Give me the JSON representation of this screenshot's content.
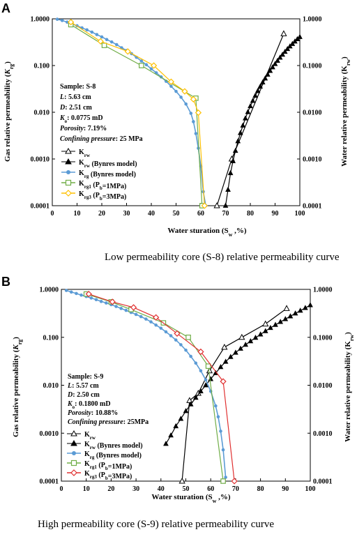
{
  "chart_data": [
    {
      "panel": "A",
      "type": "line",
      "caption": "Low permeability core (S-8) relative permeability curve",
      "xlabel": "Water sturation (S_w ,%)",
      "ylabel_left": "Gas relative permeability (K_rg)",
      "ylabel_right": "Water relative permeability (K_rw)",
      "xlim": [
        0,
        100
      ],
      "ylim": [
        0.0001,
        1
      ],
      "yscale": "log",
      "x_ticks": [
        "0",
        "10",
        "20",
        "30",
        "40",
        "50",
        "60",
        "70",
        "80",
        "90",
        "100"
      ],
      "y_ticks_left": [
        "0.0001",
        "0.0010",
        "0.010",
        "0.100",
        "1.0000"
      ],
      "y_ticks_right": [
        "0.0001",
        "0.0010",
        "0.0100",
        "0.1000",
        "1.0000"
      ],
      "info": [
        {
          "key": "Sample",
          "value": "S-8"
        },
        {
          "key": "L",
          "value": "5.63 cm"
        },
        {
          "key": "D",
          "value": "2.51 cm"
        },
        {
          "key": "K_o",
          "value": "0.0775 mD"
        },
        {
          "key": "Porosity",
          "value": "7.19%"
        },
        {
          "key": "Confining pressure",
          "value": "25 MPa"
        }
      ],
      "legend_position": "center-left",
      "series": [
        {
          "name": "K_rw",
          "color": "#000000",
          "marker": "open-triangle",
          "x": [
            66.5,
            72.5,
            93.5
          ],
          "y": [
            0.0001,
            0.001,
            0.48
          ]
        },
        {
          "name": "K_rw (Bynres model)",
          "color": "#000000",
          "marker": "filled-triangle",
          "x": [
            70,
            71,
            72,
            73,
            74,
            75,
            76,
            77,
            78,
            79,
            80,
            81,
            82,
            83,
            84,
            85,
            86,
            87,
            88,
            89,
            90,
            91,
            92,
            93,
            94,
            95,
            96,
            97,
            98,
            99,
            100
          ],
          "y": [
            0.0001,
            0.00022,
            0.0005,
            0.0009,
            0.0015,
            0.0024,
            0.0036,
            0.0052,
            0.0074,
            0.0101,
            0.0135,
            0.0176,
            0.0226,
            0.0285,
            0.0355,
            0.0436,
            0.053,
            0.064,
            0.077,
            0.092,
            0.108,
            0.127,
            0.148,
            0.171,
            0.197,
            0.226,
            0.257,
            0.291,
            0.328,
            0.368,
            0.41
          ]
        },
        {
          "name": "K_rg (Bynres model)",
          "color": "#5b9bd5",
          "marker": "filled-circle",
          "x": [
            2,
            4,
            6,
            8,
            10,
            12,
            14,
            16,
            18,
            20,
            22,
            24,
            26,
            28,
            30,
            32,
            34,
            36,
            38,
            40,
            42,
            44,
            46,
            48,
            50,
            52,
            54,
            56,
            57,
            58,
            59,
            60,
            61,
            62
          ],
          "y": [
            0.98,
            0.92,
            0.85,
            0.78,
            0.71,
            0.64,
            0.58,
            0.52,
            0.46,
            0.41,
            0.36,
            0.32,
            0.28,
            0.24,
            0.21,
            0.18,
            0.15,
            0.125,
            0.104,
            0.085,
            0.07,
            0.057,
            0.046,
            0.036,
            0.028,
            0.021,
            0.015,
            0.0095,
            0.0063,
            0.0035,
            0.0017,
            0.0007,
            0.0002,
            8e-05
          ]
        },
        {
          "name": "K_rg1 (P_b=1MPa)",
          "color": "#70ad47",
          "marker": "open-square",
          "x": [
            7.5,
            21,
            36,
            58,
            60.5
          ],
          "y": [
            0.75,
            0.27,
            0.1,
            0.02,
            0.0001
          ]
        },
        {
          "name": "K_rg3 (P_b=3MPa)",
          "color": "#ffc000",
          "marker": "open-diamond",
          "x": [
            7.5,
            19.5,
            30.5,
            41,
            48,
            53.5,
            57,
            59,
            61.5
          ],
          "y": [
            0.85,
            0.33,
            0.2,
            0.1,
            0.045,
            0.028,
            0.019,
            0.0098,
            0.0001
          ]
        }
      ]
    },
    {
      "panel": "B",
      "type": "line",
      "caption": "High permeability core (S-9) relative permeability curve",
      "xlabel": "Water sturation (S_w ,%)",
      "ylabel_left": "Gas relative permeability (K_rg)",
      "ylabel_right": "Water relative permeability (K_rw)",
      "xlim": [
        0,
        100
      ],
      "ylim": [
        0.0001,
        1
      ],
      "yscale": "log",
      "x_ticks": [
        "0",
        "10",
        "20",
        "30",
        "40",
        "50",
        "60",
        "70",
        "80",
        "90",
        "100"
      ],
      "y_ticks_left": [
        "0.0001",
        "0.0010",
        "0.010",
        "0.100",
        "1.0000"
      ],
      "y_ticks_right": [
        "0.0001",
        "0.0010",
        "0.0100",
        "0.1000",
        "1.0000"
      ],
      "info": [
        {
          "key": "Sample",
          "value": "S-9"
        },
        {
          "key": "L",
          "value": "5.57 cm"
        },
        {
          "key": "D",
          "value": "2.50 cm"
        },
        {
          "key": "K_o",
          "value": "0.1800 mD"
        },
        {
          "key": "Porosity",
          "value": "10.88%"
        },
        {
          "key": "Confining pressure",
          "value": "25MPa"
        }
      ],
      "legend_position": "bottom-left",
      "series": [
        {
          "name": "K_rw",
          "color": "#000000",
          "marker": "open-triangle",
          "x": [
            48.5,
            51.5,
            55,
            59.5,
            65.5,
            72.5,
            82,
            90.5
          ],
          "y": [
            0.0001,
            0.0048,
            0.0068,
            0.02,
            0.062,
            0.1,
            0.19,
            0.4
          ]
        },
        {
          "name": "K_rw (Bynres model)",
          "color": "#000000",
          "marker": "filled-triangle",
          "x": [
            42,
            44,
            46,
            48,
            50,
            52,
            54,
            56,
            58,
            60,
            62,
            64,
            66,
            68,
            70,
            72,
            74,
            76,
            78,
            80,
            82,
            84,
            86,
            88,
            90,
            92,
            94,
            96,
            98,
            100
          ],
          "y": [
            0.0006,
            0.0009,
            0.0014,
            0.002,
            0.0029,
            0.004,
            0.0055,
            0.0075,
            0.01,
            0.0135,
            0.018,
            0.024,
            0.031,
            0.039,
            0.048,
            0.058,
            0.07,
            0.083,
            0.098,
            0.115,
            0.135,
            0.157,
            0.182,
            0.21,
            0.24,
            0.275,
            0.315,
            0.36,
            0.41,
            0.47
          ]
        },
        {
          "name": "K_rg (Bynres model)",
          "color": "#5b9bd5",
          "marker": "filled-circle",
          "x": [
            2,
            4,
            6,
            8,
            10,
            12,
            14,
            16,
            18,
            20,
            22,
            24,
            26,
            28,
            30,
            32,
            34,
            36,
            38,
            40,
            42,
            44,
            46,
            48,
            50,
            52,
            54,
            56,
            58,
            60,
            62,
            63,
            64,
            65,
            66
          ],
          "y": [
            0.95,
            0.88,
            0.82,
            0.76,
            0.71,
            0.66,
            0.61,
            0.56,
            0.52,
            0.48,
            0.44,
            0.4,
            0.365,
            0.33,
            0.3,
            0.27,
            0.24,
            0.21,
            0.18,
            0.155,
            0.13,
            0.108,
            0.088,
            0.07,
            0.054,
            0.04,
            0.029,
            0.02,
            0.013,
            0.0075,
            0.0037,
            0.0022,
            0.0011,
            0.00045,
            0.00012
          ]
        },
        {
          "name": "K_rg1 (P_b=1MPa)",
          "color": "#70ad47",
          "marker": "open-square",
          "x": [
            10,
            20,
            28,
            41,
            51,
            59,
            65
          ],
          "y": [
            0.8,
            0.55,
            0.38,
            0.2,
            0.1,
            0.025,
            0.0001
          ]
        },
        {
          "name": "K_rg3 (P_b=3MPa)",
          "color": "#e03030",
          "marker": "open-diamond",
          "x": [
            11,
            20.5,
            29,
            38,
            46.5,
            56,
            65,
            69.5
          ],
          "y": [
            0.8,
            0.55,
            0.42,
            0.26,
            0.12,
            0.05,
            0.012,
            0.0001
          ]
        }
      ]
    }
  ]
}
